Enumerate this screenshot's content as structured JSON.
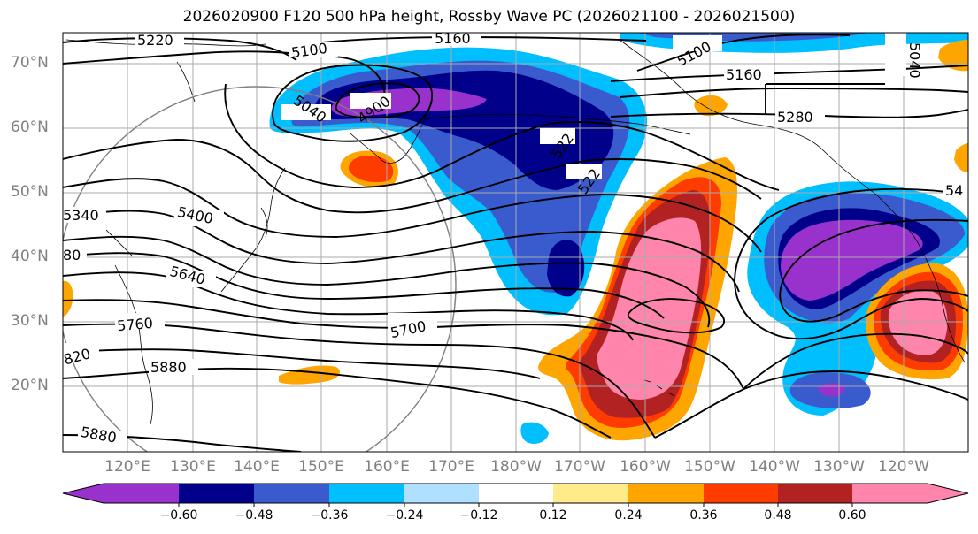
{
  "title": "2026020900 F120 500 hPa height, Rossby Wave PC (2026021100 - 2026021500)",
  "lat_labels": [
    "70°N",
    "60°N",
    "50°N",
    "40°N",
    "30°N",
    "20°N"
  ],
  "lon_labels": [
    "120°E",
    "130°E",
    "140°E",
    "150°E",
    "160°E",
    "170°E",
    "180°W",
    "170°W",
    "160°W",
    "150°W",
    "140°W",
    "130°W",
    "120°W"
  ],
  "contour_labels": [
    "5220",
    "5100",
    "5160",
    "5100",
    "5160",
    "5280",
    "4900",
    "5040",
    "522",
    "522",
    "5340",
    "5400",
    "80",
    "5640",
    "5760",
    "5700",
    "820",
    "5880",
    "5880",
    "54",
    "5040"
  ],
  "colorbar": {
    "ticks": [
      "−0.60",
      "−0.48",
      "−0.36",
      "−0.24",
      "−0.12",
      "0.12",
      "0.24",
      "0.36",
      "0.48",
      "0.60"
    ],
    "colors": [
      "#9932CC",
      "#00008B",
      "#3A5BCD",
      "#00BFFF",
      "#B0E0FF",
      "#FFFFFF",
      "#FFEB8A",
      "#FFA500",
      "#FF3C00",
      "#B22222",
      "#FF85AC"
    ]
  },
  "colors": {
    "contour": "#000000",
    "grid": "#aaaaaa",
    "range_circle": "#808080",
    "axis_label": "#808080"
  }
}
